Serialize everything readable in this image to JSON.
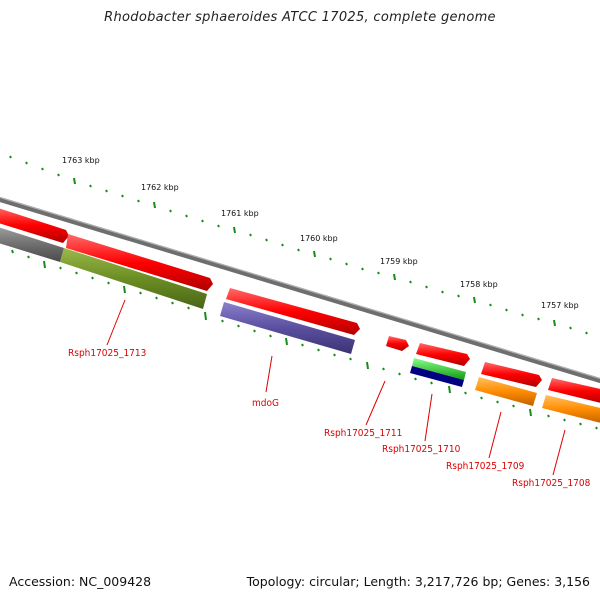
{
  "title": "Rhodobacter sphaeroides ATCC 17025, complete genome",
  "footer": {
    "accession": "Accession: NC_009428",
    "summary": "Topology: circular; Length: 3,217,726 bp; Genes: 3,156"
  },
  "ticks": [
    "1763 kbp",
    "1762 kbp",
    "1761 kbp",
    "1760 kbp",
    "1759 kbp",
    "1758 kbp",
    "1757 kbp"
  ],
  "genes": [
    {
      "label": "Rsph17025_1713",
      "color": "#dd0000"
    },
    {
      "label": "mdoG",
      "color": "#dd0000"
    },
    {
      "label": "Rsph17025_1711",
      "color": "#dd0000"
    },
    {
      "label": "Rsph17025_1710",
      "color": "#dd0000"
    },
    {
      "label": "Rsph17025_1709",
      "color": "#dd0000"
    },
    {
      "label": "Rsph17025_1708",
      "color": "#dd0000"
    }
  ],
  "colors": {
    "forward_cds": "#ff0000",
    "reverse_green": "#6b8e23",
    "reverse_purple": "#5a4fa0",
    "green_bright": "#22cc22",
    "navy": "#000080",
    "orange": "#ff8c00",
    "gray": "#707070",
    "tick_green": "#1a8a1a"
  }
}
